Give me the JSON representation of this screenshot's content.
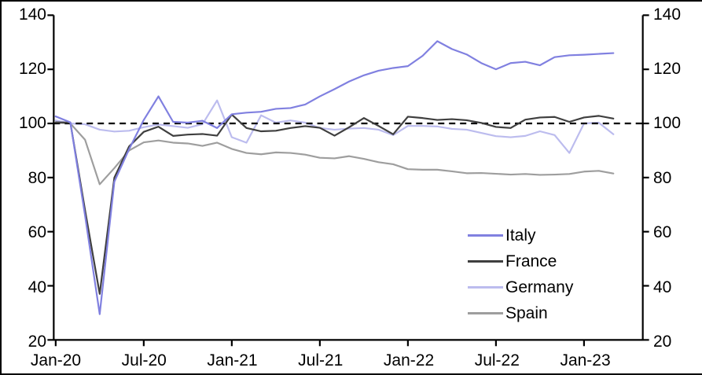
{
  "chart_data": {
    "type": "line",
    "title": "",
    "xlabel": "",
    "ylabel": "",
    "ylim": [
      20,
      140
    ],
    "grid": false,
    "background_color": "#ffffff",
    "frame_color": "#000000",
    "reference_line": {
      "value": 100,
      "style": "dashed",
      "color": "#000000"
    },
    "y_tick_labels": [
      "140",
      "120",
      "100",
      "80",
      "60",
      "40",
      "20"
    ],
    "y_tick_values": [
      140,
      120,
      100,
      80,
      60,
      40,
      20
    ],
    "x_tick_labels": [
      "Jan-20",
      "Jul-20",
      "Jan-21",
      "Jul-21",
      "Jan-22",
      "Jul-22",
      "Jan-23"
    ],
    "x_tick_indices": [
      0,
      6,
      12,
      18,
      24,
      30,
      36
    ],
    "legend_position": "lower-right-inside",
    "x": [
      "Jan-20",
      "Feb-20",
      "Mar-20",
      "Apr-20",
      "May-20",
      "Jun-20",
      "Jul-20",
      "Aug-20",
      "Sep-20",
      "Oct-20",
      "Nov-20",
      "Dec-20",
      "Jan-21",
      "Feb-21",
      "Mar-21",
      "Apr-21",
      "May-21",
      "Jun-21",
      "Jul-21",
      "Aug-21",
      "Sep-21",
      "Oct-21",
      "Nov-21",
      "Dec-21",
      "Jan-22",
      "Feb-22",
      "Mar-22",
      "Apr-22",
      "May-22",
      "Jun-22",
      "Jul-22",
      "Aug-22",
      "Sep-22",
      "Oct-22",
      "Nov-22",
      "Dec-22",
      "Jan-23",
      "Feb-23",
      "Mar-23"
    ],
    "series": [
      {
        "name": "Italy",
        "color": "#8080e0",
        "values": [
          102.6,
          100.4,
          66,
          29.5,
          78.5,
          90.5,
          101.3,
          110,
          100.6,
          100.3,
          101,
          98.3,
          103.4,
          104,
          104.3,
          105.4,
          105.7,
          107,
          110,
          112.7,
          115.5,
          117.8,
          119.5,
          120.5,
          121.2,
          125,
          130.4,
          127.5,
          125.5,
          122.3,
          120,
          122.3,
          122.8,
          121.5,
          124.5,
          125.2,
          125.4,
          125.7,
          126
        ]
      },
      {
        "name": "France",
        "color": "#3f3f3f",
        "values": [
          100.4,
          100.3,
          68,
          37,
          80,
          91.5,
          96.9,
          98.8,
          95.4,
          95.9,
          96.1,
          95.5,
          103.3,
          98.3,
          97.1,
          97.3,
          98.3,
          99,
          98.4,
          95.5,
          98.6,
          102,
          99.1,
          96,
          102.5,
          102,
          101.3,
          101.6,
          101.2,
          100.2,
          98.7,
          98.3,
          101.4,
          102.2,
          102.4,
          100.6,
          102.2,
          102.8,
          101.8
        ]
      },
      {
        "name": "Germany",
        "color": "#bcbcee",
        "values": [
          101.1,
          100,
          99.7,
          97.7,
          97,
          97.3,
          98.6,
          99.6,
          99,
          98.4,
          99.7,
          108.5,
          94.9,
          92.9,
          103,
          100.3,
          101.1,
          100.3,
          98.3,
          97.7,
          98.1,
          98.3,
          97.7,
          95.7,
          99.1,
          99.1,
          98.9,
          98,
          97.7,
          96.5,
          95.3,
          94.9,
          95.4,
          97.1,
          95.7,
          89.1,
          100,
          100.3,
          96
        ]
      },
      {
        "name": "Spain",
        "color": "#9e9e9e",
        "values": [
          100.3,
          100,
          94,
          77.5,
          83.5,
          90,
          93,
          93.7,
          92.9,
          92.6,
          91.7,
          92.9,
          90.6,
          89.1,
          88.6,
          89.3,
          89.1,
          88.5,
          87.3,
          87.1,
          87.9,
          86.9,
          85.7,
          84.9,
          83.1,
          82.9,
          82.9,
          82.3,
          81.6,
          81.7,
          81.4,
          81.1,
          81.3,
          81,
          81.1,
          81.3,
          82.2,
          82.5,
          81.5
        ]
      }
    ]
  }
}
